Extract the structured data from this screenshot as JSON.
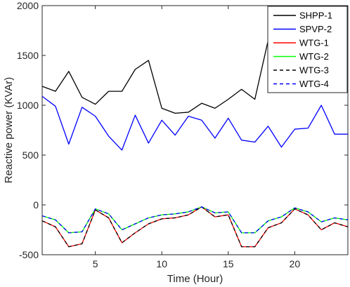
{
  "chart_data": {
    "type": "line",
    "title": "",
    "xlabel": "Time (Hour)",
    "ylabel": "Reactive power (KVAr)",
    "xlim": [
      1,
      24
    ],
    "ylim": [
      -500,
      2000
    ],
    "xticks": [
      5,
      10,
      15,
      20
    ],
    "yticks": [
      -500,
      0,
      500,
      1000,
      1500,
      2000
    ],
    "grid": false,
    "legend_position": "top-right",
    "x": [
      1,
      2,
      3,
      4,
      5,
      6,
      7,
      8,
      9,
      10,
      11,
      12,
      13,
      14,
      15,
      16,
      17,
      18,
      19,
      20,
      21,
      22,
      23,
      24
    ],
    "series": [
      {
        "name": "SHPP-1",
        "color": "#000000",
        "dash": "solid",
        "values": [
          1190,
          1140,
          1340,
          1080,
          1010,
          1140,
          1140,
          1360,
          1450,
          970,
          920,
          930,
          1020,
          970,
          1060,
          1160,
          1060,
          1650,
          1540,
          1500,
          1290,
          1210,
          1430,
          1420
        ]
      },
      {
        "name": "SPVP-2",
        "color": "#0000ff",
        "dash": "solid",
        "values": [
          1090,
          990,
          610,
          980,
          890,
          690,
          550,
          900,
          620,
          850,
          700,
          890,
          850,
          670,
          870,
          650,
          630,
          790,
          580,
          760,
          770,
          1000,
          710,
          710
        ]
      },
      {
        "name": "WTG-1",
        "color": "#ff0000",
        "dash": "solid",
        "values": [
          -160,
          -220,
          -420,
          -390,
          -50,
          -130,
          -380,
          -280,
          -190,
          -140,
          -130,
          -100,
          -20,
          -120,
          -100,
          -420,
          -420,
          -230,
          -180,
          -40,
          -100,
          -250,
          -180,
          -220
        ]
      },
      {
        "name": "WTG-2",
        "color": "#00ff00",
        "dash": "solid",
        "values": [
          -110,
          -150,
          -280,
          -270,
          -40,
          -90,
          -250,
          -190,
          -130,
          -100,
          -90,
          -70,
          -20,
          -80,
          -70,
          -280,
          -280,
          -160,
          -120,
          -30,
          -70,
          -170,
          -130,
          -150
        ]
      },
      {
        "name": "WTG-3",
        "color": "#000000",
        "dash": "dashed",
        "values": [
          -160,
          -220,
          -420,
          -390,
          -50,
          -130,
          -380,
          -280,
          -190,
          -140,
          -130,
          -100,
          -20,
          -120,
          -100,
          -420,
          -420,
          -230,
          -180,
          -40,
          -100,
          -250,
          -180,
          -220
        ]
      },
      {
        "name": "WTG-4",
        "color": "#0000ff",
        "dash": "dashed",
        "values": [
          -110,
          -150,
          -280,
          -270,
          -40,
          -90,
          -250,
          -190,
          -130,
          -100,
          -90,
          -70,
          -20,
          -80,
          -70,
          -280,
          -280,
          -160,
          -120,
          -30,
          -70,
          -170,
          -130,
          -150
        ]
      }
    ]
  }
}
